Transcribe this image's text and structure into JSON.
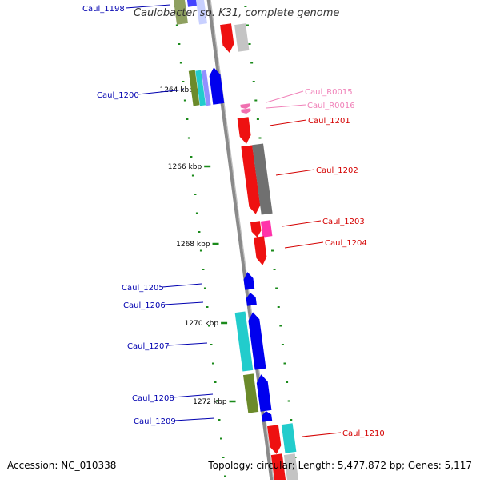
{
  "title": "Caulobacter sp. K31, complete genome",
  "accession": "Accession: NC_010338",
  "topology": "Topology: circular; Length: 5,477,872 bp; Genes: 5,117",
  "colors": {
    "backbone": "#8a8a8a",
    "tick": "#1a8a1a",
    "left_label": "#0000b0",
    "right_label": "#d40000",
    "rna_label": "#f080b8",
    "ruler_label": "#000000"
  },
  "ruler": [
    "1264 kbp",
    "1266 kbp",
    "1268 kbp",
    "1270 kbp",
    "1272 kbp"
  ],
  "gene_labels": [
    {
      "text": "Caul_1198",
      "side": "left"
    },
    {
      "text": "Caul_1200",
      "side": "left"
    },
    {
      "text": "Caul_1205",
      "side": "left"
    },
    {
      "text": "Caul_1206",
      "side": "left"
    },
    {
      "text": "Caul_1207",
      "side": "left"
    },
    {
      "text": "Caul_1208",
      "side": "left"
    },
    {
      "text": "Caul_1209",
      "side": "left"
    },
    {
      "text": "Caul_R0015",
      "side": "right",
      "kind": "rna"
    },
    {
      "text": "Caul_R0016",
      "side": "right",
      "kind": "rna"
    },
    {
      "text": "Caul_1201",
      "side": "right"
    },
    {
      "text": "Caul_1202",
      "side": "right"
    },
    {
      "text": "Caul_1203",
      "side": "right"
    },
    {
      "text": "Caul_1204",
      "side": "right"
    },
    {
      "text": "Caul_1210",
      "side": "right"
    }
  ]
}
